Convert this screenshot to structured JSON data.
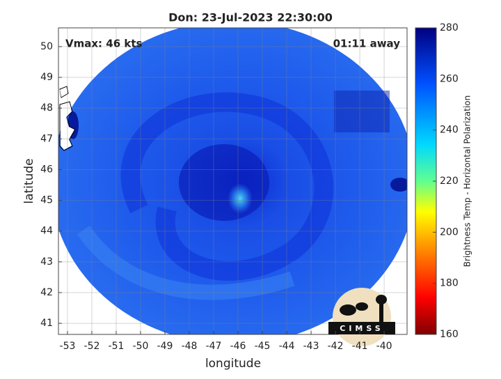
{
  "title": "Don: 23-Jul-2023 22:30:00",
  "annotations": {
    "left": "Vmax: 46 kts",
    "right": "01:11 away"
  },
  "x_axis": {
    "label": "longitude",
    "lim": [
      -53.37,
      -39.06
    ],
    "ticks": [
      -53,
      -52,
      -51,
      -50,
      -49,
      -48,
      -47,
      -46,
      -45,
      -44,
      -43,
      -42,
      -41,
      -40
    ]
  },
  "y_axis": {
    "label": "latitude",
    "lim": [
      40.64,
      50.61
    ],
    "ticks": [
      41,
      42,
      43,
      44,
      45,
      46,
      47,
      48,
      49,
      50
    ]
  },
  "colorbar": {
    "label": "Brightness Temp - Horizontal Polarization",
    "lim": [
      160,
      280
    ],
    "ticks": [
      160,
      180,
      200,
      220,
      240,
      260,
      280
    ]
  },
  "logo": "CIMSS"
}
